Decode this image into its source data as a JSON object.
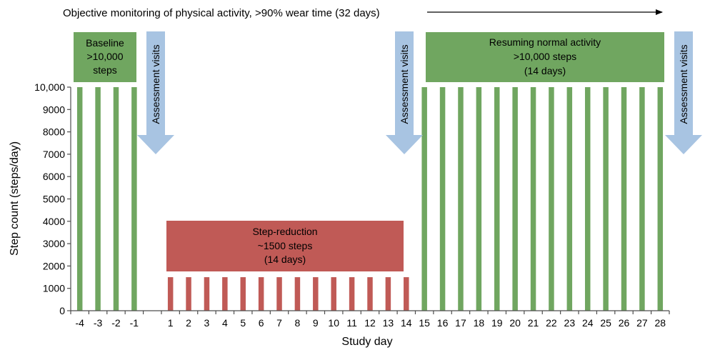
{
  "header": {
    "text": "Objective monitoring of physical activity, >90% wear time (32 days)"
  },
  "phases": {
    "baseline": [
      "Baseline",
      ">10,000",
      "steps"
    ],
    "reduction": [
      "Step-reduction",
      "~1500 steps",
      "(14 days)"
    ],
    "resuming": [
      "Resuming normal activity",
      ">10,000 steps",
      "(14 days)"
    ]
  },
  "assessment_label": "Assessment visits",
  "colors": {
    "green": "#70a660",
    "red": "#c05a56",
    "arrow": "#a8c4e2",
    "axis": "#4d4d4d"
  },
  "chart_data": {
    "type": "bar",
    "title": "",
    "xlabel": "Study day",
    "ylabel": "Step count (steps/day)",
    "ylim": [
      0,
      10000
    ],
    "yticks": [
      "0",
      "1000",
      "2000",
      "3000",
      "4000",
      "5000",
      "6000",
      "7000",
      "8000",
      "9000",
      "10,000"
    ],
    "grid": false,
    "categories": [
      "-4",
      "-3",
      "-2",
      "-1",
      "1",
      "2",
      "3",
      "4",
      "5",
      "6",
      "7",
      "8",
      "9",
      "10",
      "11",
      "12",
      "13",
      "14",
      "15",
      "16",
      "17",
      "18",
      "19",
      "20",
      "21",
      "22",
      "23",
      "24",
      "25",
      "26",
      "27",
      "28"
    ],
    "values": [
      10000,
      10000,
      10000,
      10000,
      1500,
      1500,
      1500,
      1500,
      1500,
      1500,
      1500,
      1500,
      1500,
      1500,
      1500,
      1500,
      1500,
      1500,
      10000,
      10000,
      10000,
      10000,
      10000,
      10000,
      10000,
      10000,
      10000,
      10000,
      10000,
      10000,
      10000,
      10000
    ]
  }
}
